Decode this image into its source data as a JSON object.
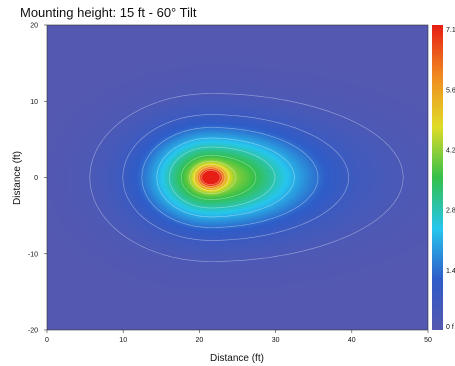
{
  "chart_data": {
    "type": "heatmap",
    "title": "Mounting height: 15 ft - 60° Tilt",
    "xlabel": "Distance (ft)",
    "ylabel": "Distance (ft)",
    "xlim": [
      0,
      50
    ],
    "ylim": [
      -20,
      20
    ],
    "x_ticks": [
      "0",
      "10",
      "20",
      "30",
      "40",
      "50"
    ],
    "y_ticks": [
      "20",
      "10",
      "0",
      "-10",
      "-20"
    ],
    "colorbar": {
      "min": 0,
      "max": 7.1,
      "ticks": [
        "7.1",
        "5.6",
        "4.2",
        "2.8",
        "1.4",
        "0 f"
      ],
      "colors": [
        "#5558b0",
        "#2f5cc8",
        "#27c6ee",
        "#34c04a",
        "#e0dc27",
        "#f08a20",
        "#e61e14"
      ]
    },
    "hotspot": {
      "x": 21.5,
      "y": 0,
      "value": 7.1
    },
    "contour_values": [
      0.3,
      0.8,
      1.4,
      2.1,
      2.8,
      3.5,
      4.2,
      4.9,
      5.6,
      6.3,
      7.0
    ]
  }
}
